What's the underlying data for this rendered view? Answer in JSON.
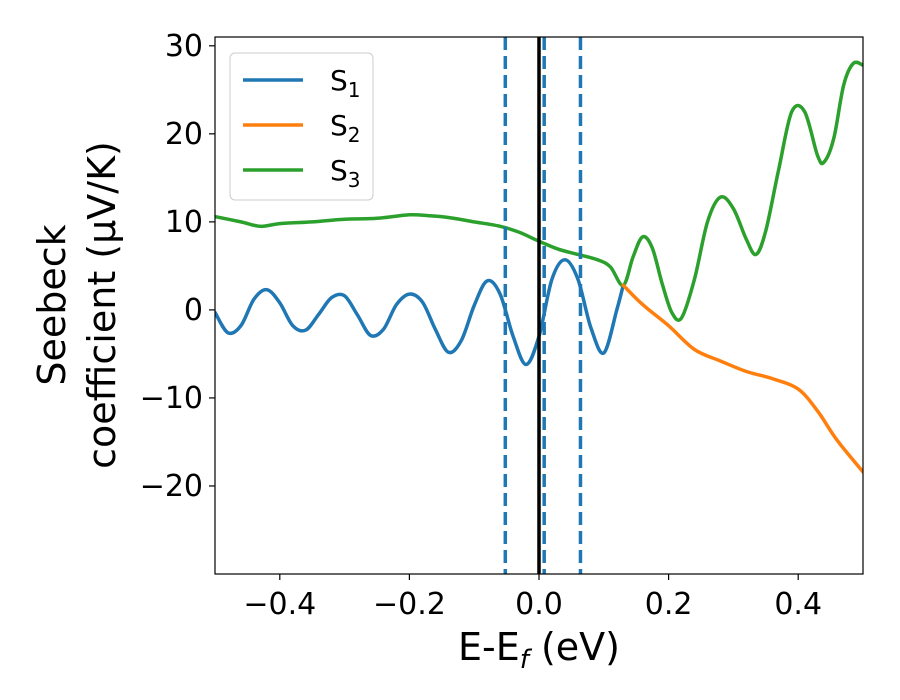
{
  "chart_data": {
    "type": "line",
    "xlabel": "E-E_f (eV)",
    "ylabel": "Seebeck coefficient (μV/K)",
    "ylabel_lines": [
      "Seebeck",
      "coefficient  (μV/K)"
    ],
    "xlabel_parts": {
      "pre": "E-E",
      "sub": "f",
      "post": " (eV)"
    },
    "xlim": [
      -0.5,
      0.5
    ],
    "ylim": [
      -30,
      31
    ],
    "xticks": [
      -0.4,
      -0.2,
      0.0,
      0.2,
      0.4
    ],
    "xtick_labels": [
      "−0.4",
      "−0.2",
      "0.0",
      "0.2",
      "0.4"
    ],
    "yticks": [
      -20,
      -10,
      0,
      10,
      20,
      30
    ],
    "ytick_labels": [
      "−20",
      "−10",
      "0",
      "10",
      "20",
      "30"
    ],
    "grid": false,
    "legend_placement": "top-left",
    "series": [
      {
        "name": "S1",
        "label_main": "S",
        "label_sub": "1",
        "color": "#1f77b4",
        "points": [
          [
            -0.5,
            -0.3
          ],
          [
            -0.48,
            -2.6
          ],
          [
            -0.46,
            -1.8
          ],
          [
            -0.44,
            1.2
          ],
          [
            -0.42,
            2.3
          ],
          [
            -0.4,
            0.8
          ],
          [
            -0.38,
            -1.8
          ],
          [
            -0.36,
            -2.3
          ],
          [
            -0.34,
            -0.5
          ],
          [
            -0.32,
            1.4
          ],
          [
            -0.3,
            1.6
          ],
          [
            -0.28,
            -0.6
          ],
          [
            -0.26,
            -2.9
          ],
          [
            -0.24,
            -2.2
          ],
          [
            -0.22,
            0.6
          ],
          [
            -0.2,
            1.8
          ],
          [
            -0.18,
            0.9
          ],
          [
            -0.16,
            -2.2
          ],
          [
            -0.14,
            -4.8
          ],
          [
            -0.12,
            -3.5
          ],
          [
            -0.1,
            0.5
          ],
          [
            -0.08,
            3.3
          ],
          [
            -0.06,
            1.8
          ],
          [
            -0.04,
            -3.0
          ],
          [
            -0.02,
            -6.2
          ],
          [
            0.0,
            -3.0
          ],
          [
            0.02,
            3.5
          ],
          [
            0.04,
            5.7
          ],
          [
            0.06,
            3.5
          ],
          [
            0.08,
            -2.0
          ],
          [
            0.1,
            -4.9
          ],
          [
            0.12,
            0.0
          ],
          [
            0.13,
            2.8
          ]
        ]
      },
      {
        "name": "S2",
        "label_main": "S",
        "label_sub": "2",
        "color": "#ff7f0e",
        "points": [
          [
            0.13,
            2.8
          ],
          [
            0.16,
            0.6
          ],
          [
            0.2,
            -1.8
          ],
          [
            0.24,
            -4.5
          ],
          [
            0.28,
            -5.8
          ],
          [
            0.32,
            -7.0
          ],
          [
            0.36,
            -7.8
          ],
          [
            0.4,
            -9.0
          ],
          [
            0.43,
            -11.5
          ],
          [
            0.46,
            -14.8
          ],
          [
            0.5,
            -18.4
          ]
        ]
      },
      {
        "name": "S3",
        "label_main": "S",
        "label_sub": "3",
        "color": "#2ca02c",
        "points": [
          [
            -0.5,
            10.6
          ],
          [
            -0.46,
            10.0
          ],
          [
            -0.43,
            9.5
          ],
          [
            -0.4,
            9.8
          ],
          [
            -0.35,
            10.0
          ],
          [
            -0.3,
            10.3
          ],
          [
            -0.25,
            10.4
          ],
          [
            -0.2,
            10.8
          ],
          [
            -0.17,
            10.7
          ],
          [
            -0.14,
            10.5
          ],
          [
            -0.1,
            10.0
          ],
          [
            -0.06,
            9.5
          ],
          [
            -0.03,
            8.8
          ],
          [
            0.0,
            7.8
          ],
          [
            0.03,
            6.9
          ],
          [
            0.06,
            6.3
          ],
          [
            0.09,
            5.7
          ],
          [
            0.11,
            4.9
          ],
          [
            0.13,
            2.8
          ],
          [
            0.145,
            6.0
          ],
          [
            0.16,
            8.3
          ],
          [
            0.175,
            7.0
          ],
          [
            0.19,
            3.0
          ],
          [
            0.205,
            -0.3
          ],
          [
            0.22,
            -0.9
          ],
          [
            0.24,
            3.5
          ],
          [
            0.26,
            10.0
          ],
          [
            0.28,
            12.8
          ],
          [
            0.3,
            11.5
          ],
          [
            0.32,
            8.0
          ],
          [
            0.335,
            6.3
          ],
          [
            0.35,
            9.0
          ],
          [
            0.37,
            16.0
          ],
          [
            0.39,
            22.5
          ],
          [
            0.41,
            22.5
          ],
          [
            0.43,
            17.5
          ],
          [
            0.44,
            16.8
          ],
          [
            0.455,
            19.5
          ],
          [
            0.47,
            25.5
          ],
          [
            0.485,
            28.0
          ],
          [
            0.5,
            27.8
          ]
        ]
      }
    ],
    "vlines": [
      {
        "x": -0.052,
        "style": "dashed",
        "color": "#1f77b4"
      },
      {
        "x": 0.008,
        "style": "dashed",
        "color": "#1f77b4"
      },
      {
        "x": 0.064,
        "style": "dashed",
        "color": "#1f77b4"
      },
      {
        "x": 0.0,
        "style": "solid",
        "color": "#000000"
      }
    ]
  }
}
